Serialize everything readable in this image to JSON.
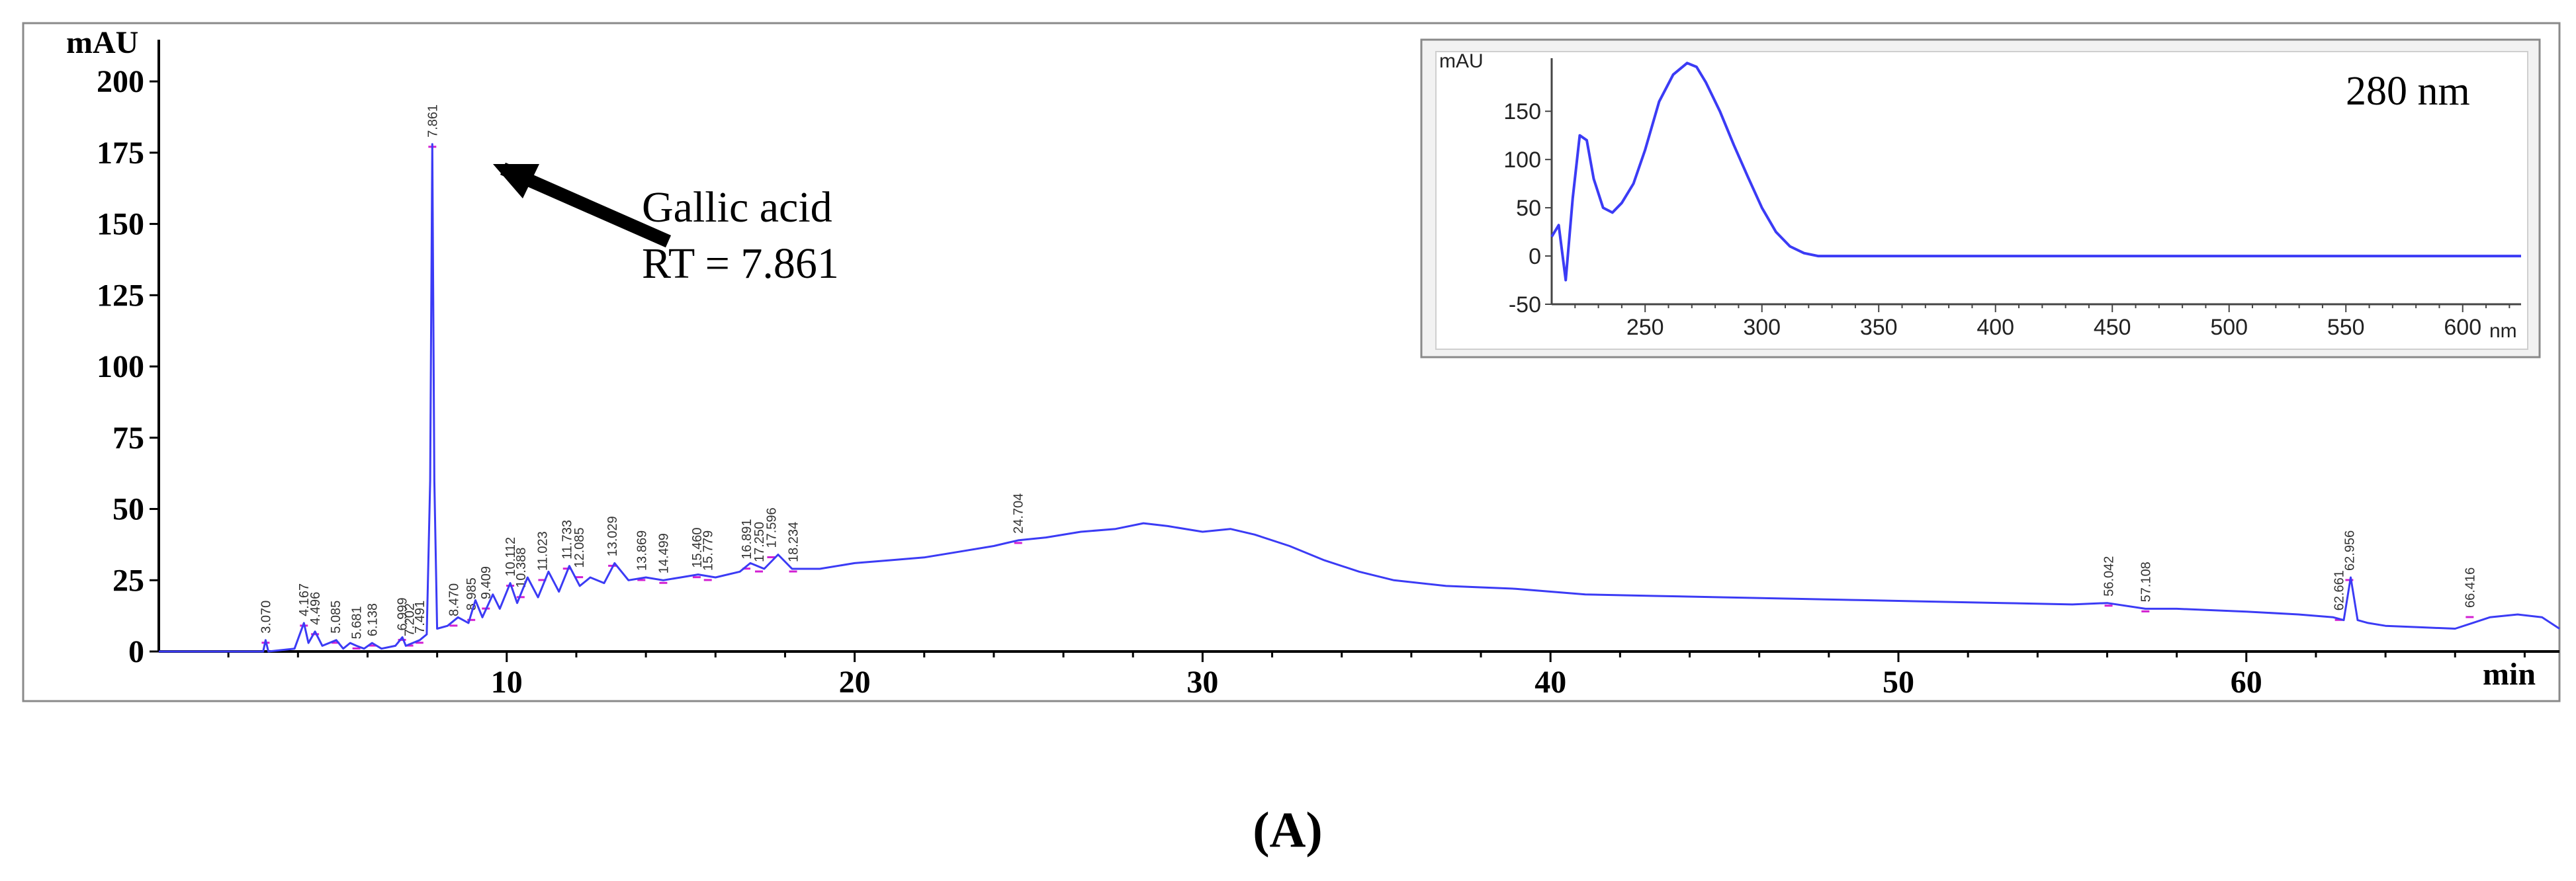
{
  "figure_label": "(A)",
  "chart_data": [
    {
      "type": "line",
      "name_hint": "main",
      "ylabel": "mAU",
      "xlabel": "min",
      "xlim": [
        0,
        69
      ],
      "ylim": [
        0,
        210
      ],
      "x_ticks": [
        10,
        20,
        30,
        40,
        50,
        60
      ],
      "y_ticks": [
        0,
        25,
        50,
        75,
        100,
        125,
        150,
        175,
        200
      ],
      "series": [
        {
          "color": "#3b3bf5",
          "x": [
            0,
            3.0,
            3.07,
            3.15,
            3.9,
            4.17,
            4.3,
            4.49,
            4.7,
            5.1,
            5.3,
            5.5,
            5.68,
            5.9,
            6.13,
            6.4,
            6.8,
            7.0,
            7.1,
            7.3,
            7.5,
            7.7,
            7.8,
            7.861,
            7.92,
            8.0,
            8.3,
            8.6,
            8.9,
            9.1,
            9.3,
            9.6,
            9.8,
            10.1,
            10.3,
            10.6,
            10.9,
            11.2,
            11.5,
            11.8,
            12.1,
            12.4,
            12.8,
            13.1,
            13.5,
            14.0,
            14.5,
            15.0,
            15.5,
            16.0,
            16.7,
            17.0,
            17.4,
            17.8,
            18.2,
            19.0,
            20.0,
            21.0,
            22.0,
            23.0,
            24.0,
            24.7,
            25.5,
            26.5,
            27.5,
            28.3,
            29.0,
            30.0,
            30.8,
            31.5,
            32.5,
            33.5,
            34.5,
            35.5,
            37.0,
            39.0,
            41.0,
            43.0,
            45.0,
            47.0,
            49.0,
            51.0,
            53.0,
            55.0,
            56.0,
            57.1,
            58.0,
            60.0,
            61.5,
            62.5,
            62.8,
            63.0,
            63.2,
            63.5,
            64.0,
            65.0,
            66.0,
            66.5,
            67.0,
            67.8,
            68.5,
            69.0
          ],
          "y": [
            0,
            0,
            4,
            0,
            1,
            10,
            3,
            7,
            2,
            4,
            1,
            3,
            2,
            1,
            3,
            1,
            2,
            5,
            2,
            3,
            4,
            6,
            60,
            178,
            60,
            8,
            9,
            12,
            10,
            18,
            12,
            20,
            15,
            24,
            17,
            26,
            19,
            28,
            21,
            30,
            23,
            26,
            24,
            31,
            25,
            26,
            25,
            26,
            27,
            26,
            28,
            31,
            29,
            34,
            29,
            29,
            31,
            32,
            33,
            35,
            37,
            39,
            40,
            42,
            43,
            45,
            44,
            42,
            43,
            41,
            37,
            32,
            28,
            25,
            23,
            22,
            20,
            19.5,
            19,
            18.5,
            18,
            17.5,
            17,
            16.5,
            17,
            15,
            15,
            14,
            13,
            12,
            11,
            26,
            11,
            10,
            9,
            8.5,
            8,
            10,
            12,
            13,
            12,
            8
          ]
        }
      ],
      "peaks": [
        {
          "label": "3.070",
          "x": 3.07,
          "y": 4
        },
        {
          "label": "4.167",
          "x": 4.17,
          "y": 10
        },
        {
          "label": "4.496",
          "x": 4.49,
          "y": 7
        },
        {
          "label": "5.085",
          "x": 5.08,
          "y": 4
        },
        {
          "label": "5.681",
          "x": 5.68,
          "y": 2
        },
        {
          "label": "6.138",
          "x": 6.13,
          "y": 3
        },
        {
          "label": "6.999",
          "x": 6.99,
          "y": 5
        },
        {
          "label": "7.202",
          "x": 7.2,
          "y": 3
        },
        {
          "label": "7.491",
          "x": 7.49,
          "y": 4
        },
        {
          "label": "7.861",
          "x": 7.861,
          "y": 178
        },
        {
          "label": "8.470",
          "x": 8.47,
          "y": 10
        },
        {
          "label": "8.985",
          "x": 8.98,
          "y": 12
        },
        {
          "label": "9.409",
          "x": 9.4,
          "y": 16
        },
        {
          "label": "10.112",
          "x": 10.1,
          "y": 24
        },
        {
          "label": "10.388",
          "x": 10.4,
          "y": 20
        },
        {
          "label": "11.023",
          "x": 11.02,
          "y": 26
        },
        {
          "label": "11.733",
          "x": 11.73,
          "y": 30
        },
        {
          "label": "12.085",
          "x": 12.08,
          "y": 27
        },
        {
          "label": "13.029",
          "x": 13.03,
          "y": 31
        },
        {
          "label": "13.869",
          "x": 13.87,
          "y": 26
        },
        {
          "label": "14.499",
          "x": 14.5,
          "y": 25
        },
        {
          "label": "15.460",
          "x": 15.46,
          "y": 27
        },
        {
          "label": "15.779",
          "x": 15.78,
          "y": 26
        },
        {
          "label": "16.891",
          "x": 16.89,
          "y": 30
        },
        {
          "label": "17.250",
          "x": 17.25,
          "y": 29
        },
        {
          "label": "17.596",
          "x": 17.6,
          "y": 34
        },
        {
          "label": "18.234",
          "x": 18.23,
          "y": 29
        },
        {
          "label": "24.704",
          "x": 24.7,
          "y": 39
        },
        {
          "label": "56.042",
          "x": 56.04,
          "y": 17
        },
        {
          "label": "57.108",
          "x": 57.1,
          "y": 15
        },
        {
          "label": "62.661",
          "x": 62.66,
          "y": 12
        },
        {
          "label": "62.956",
          "x": 62.96,
          "y": 26
        },
        {
          "label": "66.416",
          "x": 66.42,
          "y": 13
        }
      ],
      "annotation": {
        "lines": [
          "Gallic acid",
          "RT = 7.861"
        ],
        "points_to_x": 7.861,
        "points_to_y": 178
      }
    },
    {
      "type": "line",
      "name_hint": "inset",
      "title": "280 nm",
      "ylabel": "mAU",
      "xlabel": "nm",
      "xlim": [
        210,
        625
      ],
      "ylim": [
        -50,
        205
      ],
      "x_ticks": [
        250,
        300,
        350,
        400,
        450,
        500,
        550,
        600
      ],
      "y_ticks": [
        -50,
        0,
        50,
        100,
        150
      ],
      "series": [
        {
          "color": "#3b3bf5",
          "x": [
            210,
            213,
            216,
            219,
            222,
            225,
            228,
            232,
            236,
            240,
            245,
            250,
            256,
            262,
            268,
            272,
            276,
            282,
            288,
            294,
            300,
            306,
            312,
            318,
            324,
            330,
            340,
            360,
            400,
            450,
            500,
            550,
            600,
            625
          ],
          "y": [
            20,
            32,
            -25,
            60,
            125,
            120,
            80,
            50,
            45,
            55,
            75,
            110,
            160,
            188,
            200,
            196,
            180,
            150,
            115,
            82,
            50,
            25,
            10,
            3,
            0,
            0,
            0,
            0,
            0,
            0,
            0,
            0,
            0,
            0
          ]
        }
      ]
    }
  ]
}
